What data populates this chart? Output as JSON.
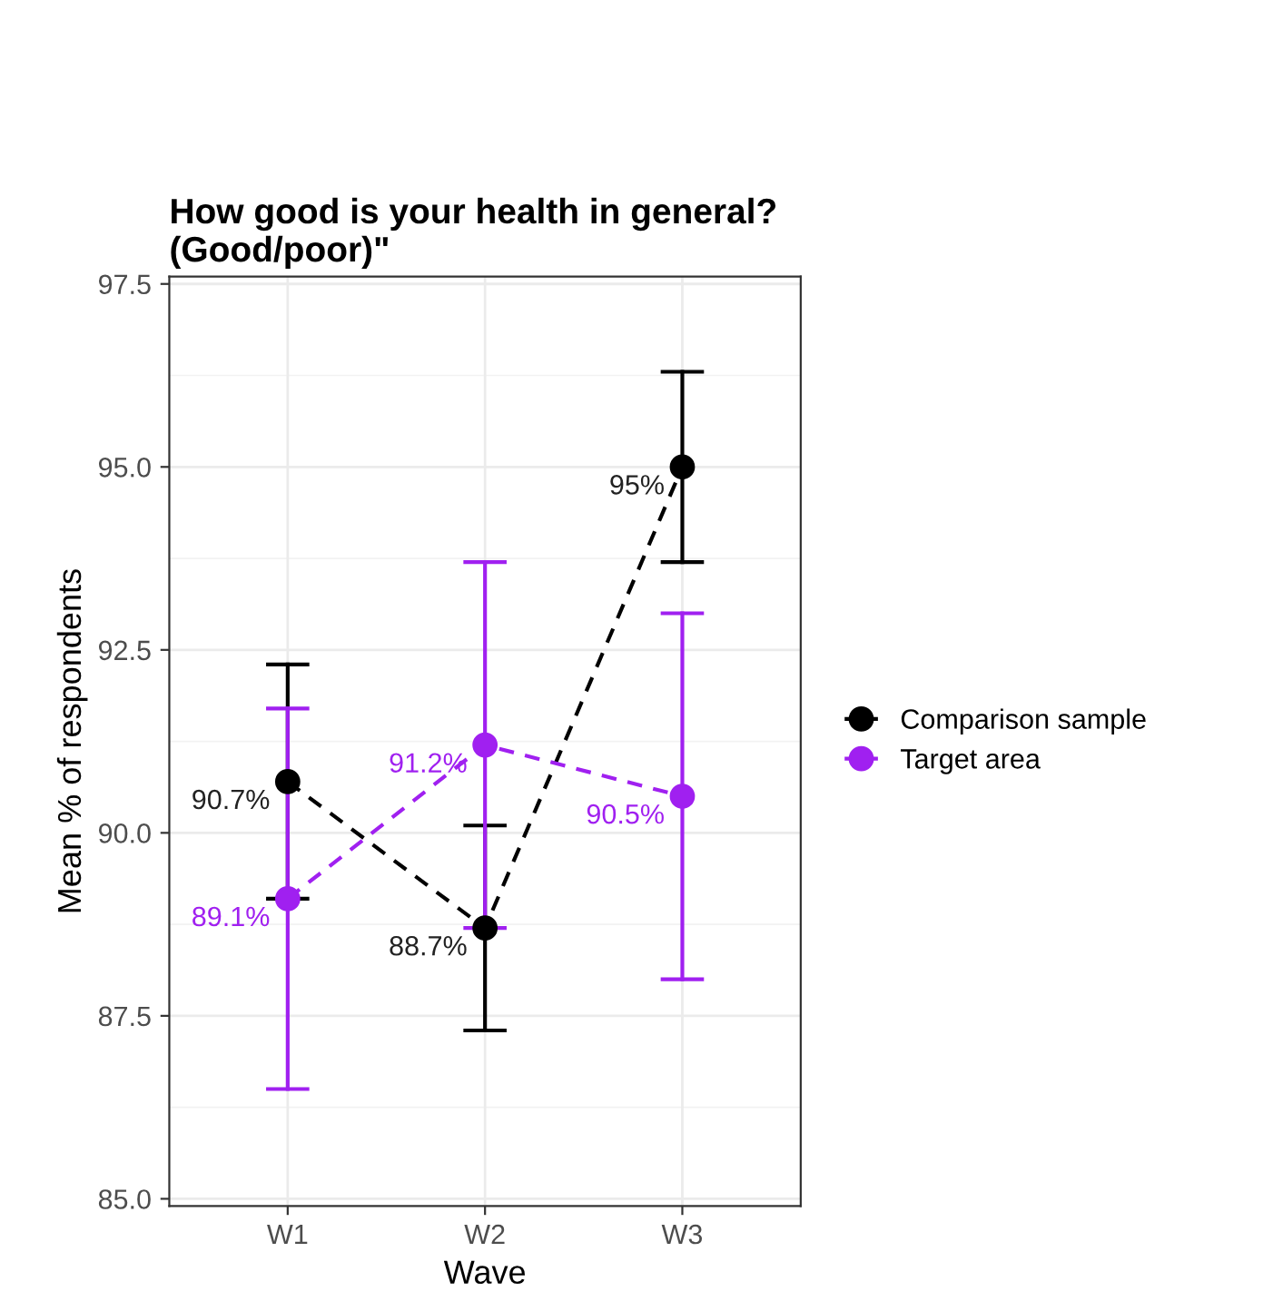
{
  "chart_data": {
    "type": "line",
    "title": "How good is your health in general?\n(Good/poor)\"",
    "xlabel": "Wave",
    "ylabel": "Mean % of respondents",
    "categories": [
      "W1",
      "W2",
      "W3"
    ],
    "series": [
      {
        "name": "Comparison sample",
        "color": "#000000",
        "values": [
          90.7,
          88.7,
          95.0
        ],
        "errors": [
          1.6,
          1.4,
          1.3
        ],
        "value_labels": [
          "90.7%",
          "88.7%",
          "95%"
        ]
      },
      {
        "name": "Target area",
        "color": "#a020f0",
        "values": [
          89.1,
          91.2,
          90.5
        ],
        "errors": [
          2.6,
          2.5,
          2.5
        ],
        "value_labels": [
          "89.1%",
          "91.2%",
          "90.5%"
        ]
      }
    ],
    "ylim": [
      84.9,
      97.6
    ],
    "yticks": [
      {
        "value": 85,
        "label": "85.0"
      },
      87.5,
      {
        "value": 90,
        "label": "90.0"
      },
      92.5,
      {
        "value": 95,
        "label": "95.0"
      },
      97.5
    ],
    "grid": true,
    "legend": "right",
    "marker": "circle",
    "line_style": "dashed"
  }
}
